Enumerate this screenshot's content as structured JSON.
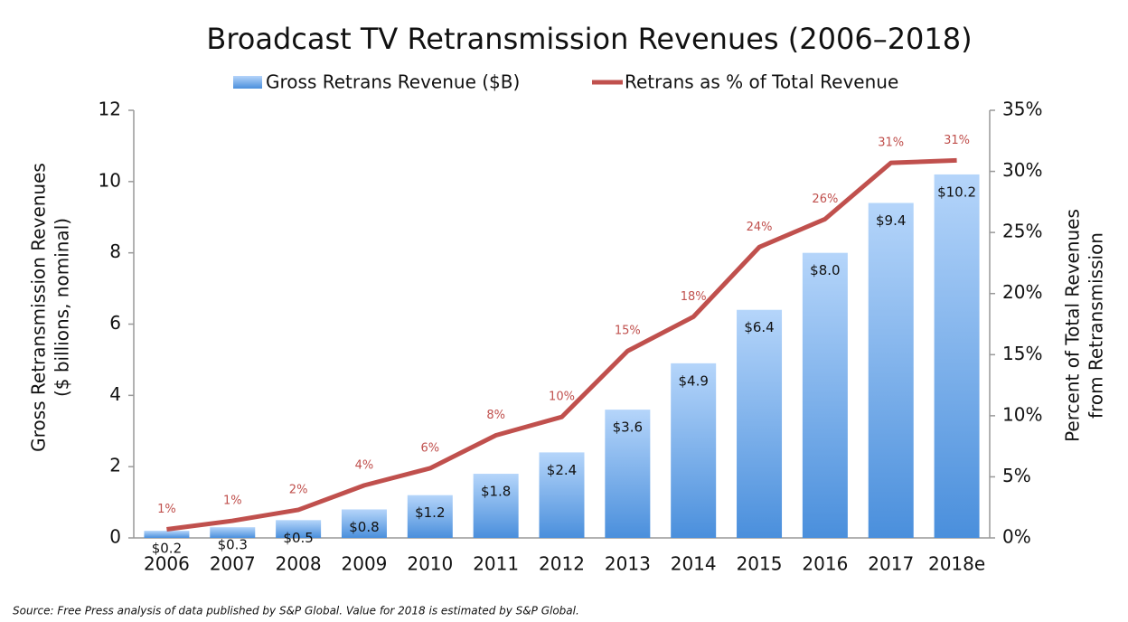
{
  "chart_data": {
    "type": "bar",
    "title": "Broadcast TV Retransmission Revenues (2006–2018)",
    "categories": [
      "2006",
      "2007",
      "2008",
      "2009",
      "2010",
      "2011",
      "2012",
      "2013",
      "2014",
      "2015",
      "2016",
      "2017",
      "2018e"
    ],
    "series": [
      {
        "name": "Gross Retrans Revenue ($B)",
        "type": "bar",
        "color": "#5b9bdf",
        "values": [
          0.2,
          0.3,
          0.5,
          0.8,
          1.2,
          1.8,
          2.4,
          3.6,
          4.9,
          6.4,
          8.0,
          9.4,
          10.2
        ],
        "value_labels": [
          "$0.2",
          "$0.3",
          "$0.5",
          "$0.8",
          "$1.2",
          "$1.8",
          "$2.4",
          "$3.6",
          "$4.9",
          "$6.4",
          "$8.0",
          "$9.4",
          "$10.2"
        ]
      },
      {
        "name": "Retrans as % of Total Revenue",
        "type": "line",
        "color": "#c0504d",
        "axis": "y2",
        "values": [
          0.7,
          1.4,
          2.3,
          4.3,
          5.7,
          8.4,
          9.9,
          15.3,
          18.1,
          23.8,
          26.1,
          30.7,
          30.9
        ],
        "value_labels": [
          "1%",
          "1%",
          "2%",
          "4%",
          "6%",
          "8%",
          "10%",
          "15%",
          "18%",
          "24%",
          "26%",
          "31%",
          "31%"
        ]
      }
    ],
    "ylabel": [
      "Gross Retransmission Revenues",
      "($ billions, nominal)"
    ],
    "y2label": [
      "Percent of Total Revenues",
      "from Retransmission"
    ],
    "ylim": [
      0,
      12
    ],
    "yticks": [
      0,
      2,
      4,
      6,
      8,
      10,
      12
    ],
    "y2lim": [
      0,
      35
    ],
    "y2ticks": [
      {
        "value": 0,
        "label": "0%"
      },
      {
        "value": 5,
        "label": "5%"
      },
      {
        "value": 10,
        "label": "10%"
      },
      {
        "value": 15,
        "label": "15%"
      },
      {
        "value": 20,
        "label": "20%"
      },
      {
        "value": 25,
        "label": "25%"
      },
      {
        "value": 30,
        "label": "30%"
      },
      {
        "value": 35,
        "label": "35%"
      }
    ],
    "grid": false,
    "legend": "top",
    "source": "Source:  Free Press analysis of data published by S&P Global. Value for 2018 is estimated by S&P Global."
  }
}
